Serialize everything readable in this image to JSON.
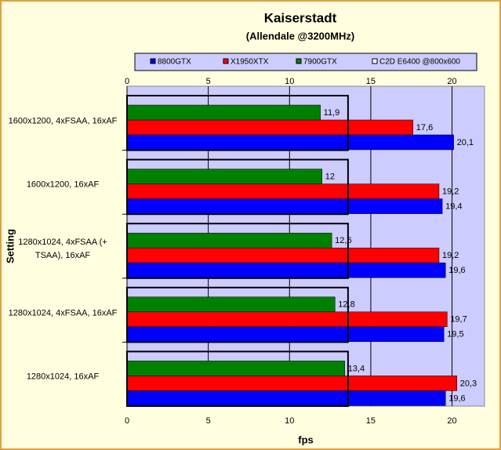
{
  "chart_data": {
    "type": "hbar",
    "title": "Kaiserstadt",
    "subtitle": "(Allendale @3200MHz)",
    "x_label": "fps",
    "y_label": "Setting",
    "categories": [
      "1600x1200, 4xFSAA, 16xAF",
      "1600x1200, 16xAF",
      "1280x1024, 4xFSAA (+ TSAA), 16xAF",
      "1280x1024, 4xFSAA, 16xAF",
      "1280x1024, 16xAF"
    ],
    "series": [
      {
        "name": "8800GTX",
        "color": "#0000ff",
        "values": [
          20.1,
          19.4,
          19.6,
          19.5,
          19.6
        ],
        "value_labels": [
          "20,1",
          "19,4",
          "19,6",
          "19,5",
          "19,6"
        ]
      },
      {
        "name": "X1950XTX",
        "color": "#ff0000",
        "values": [
          17.6,
          19.2,
          19.2,
          19.7,
          20.3
        ],
        "value_labels": [
          "17,6",
          "19,2",
          "19,2",
          "19,7",
          "20,3"
        ]
      },
      {
        "name": "7900GTX",
        "color": "#008000",
        "values": [
          11.9,
          12,
          12.6,
          12.8,
          13.4
        ],
        "value_labels": [
          "11,9",
          "12",
          "12,6",
          "12,8",
          "13,4"
        ]
      },
      {
        "name": "C2D E6400 @800x600",
        "color": "#ffffff",
        "values": [
          13.6,
          13.6,
          13.6,
          13.6,
          13.6
        ]
      }
    ],
    "xlim": [
      0,
      22
    ],
    "xticks": [
      0,
      5,
      10,
      15,
      20
    ],
    "grid": true
  }
}
